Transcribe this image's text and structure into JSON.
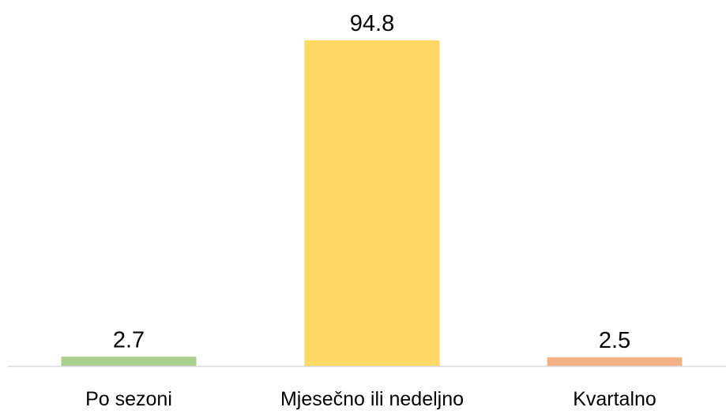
{
  "chart_data": {
    "type": "bar",
    "title": "",
    "xlabel": "",
    "ylabel": "",
    "categories": [
      "Po sezoni",
      "Mjesečno ili nedeljno",
      "Kvartalno"
    ],
    "values": [
      2.7,
      94.8,
      2.5
    ],
    "value_labels": [
      "2.7",
      "94.8",
      "2.5"
    ],
    "colors": [
      "#a9d18e",
      "#ffd966",
      "#f4b183"
    ],
    "ylim": [
      0,
      94.8
    ],
    "grid": false,
    "legend": "none"
  }
}
